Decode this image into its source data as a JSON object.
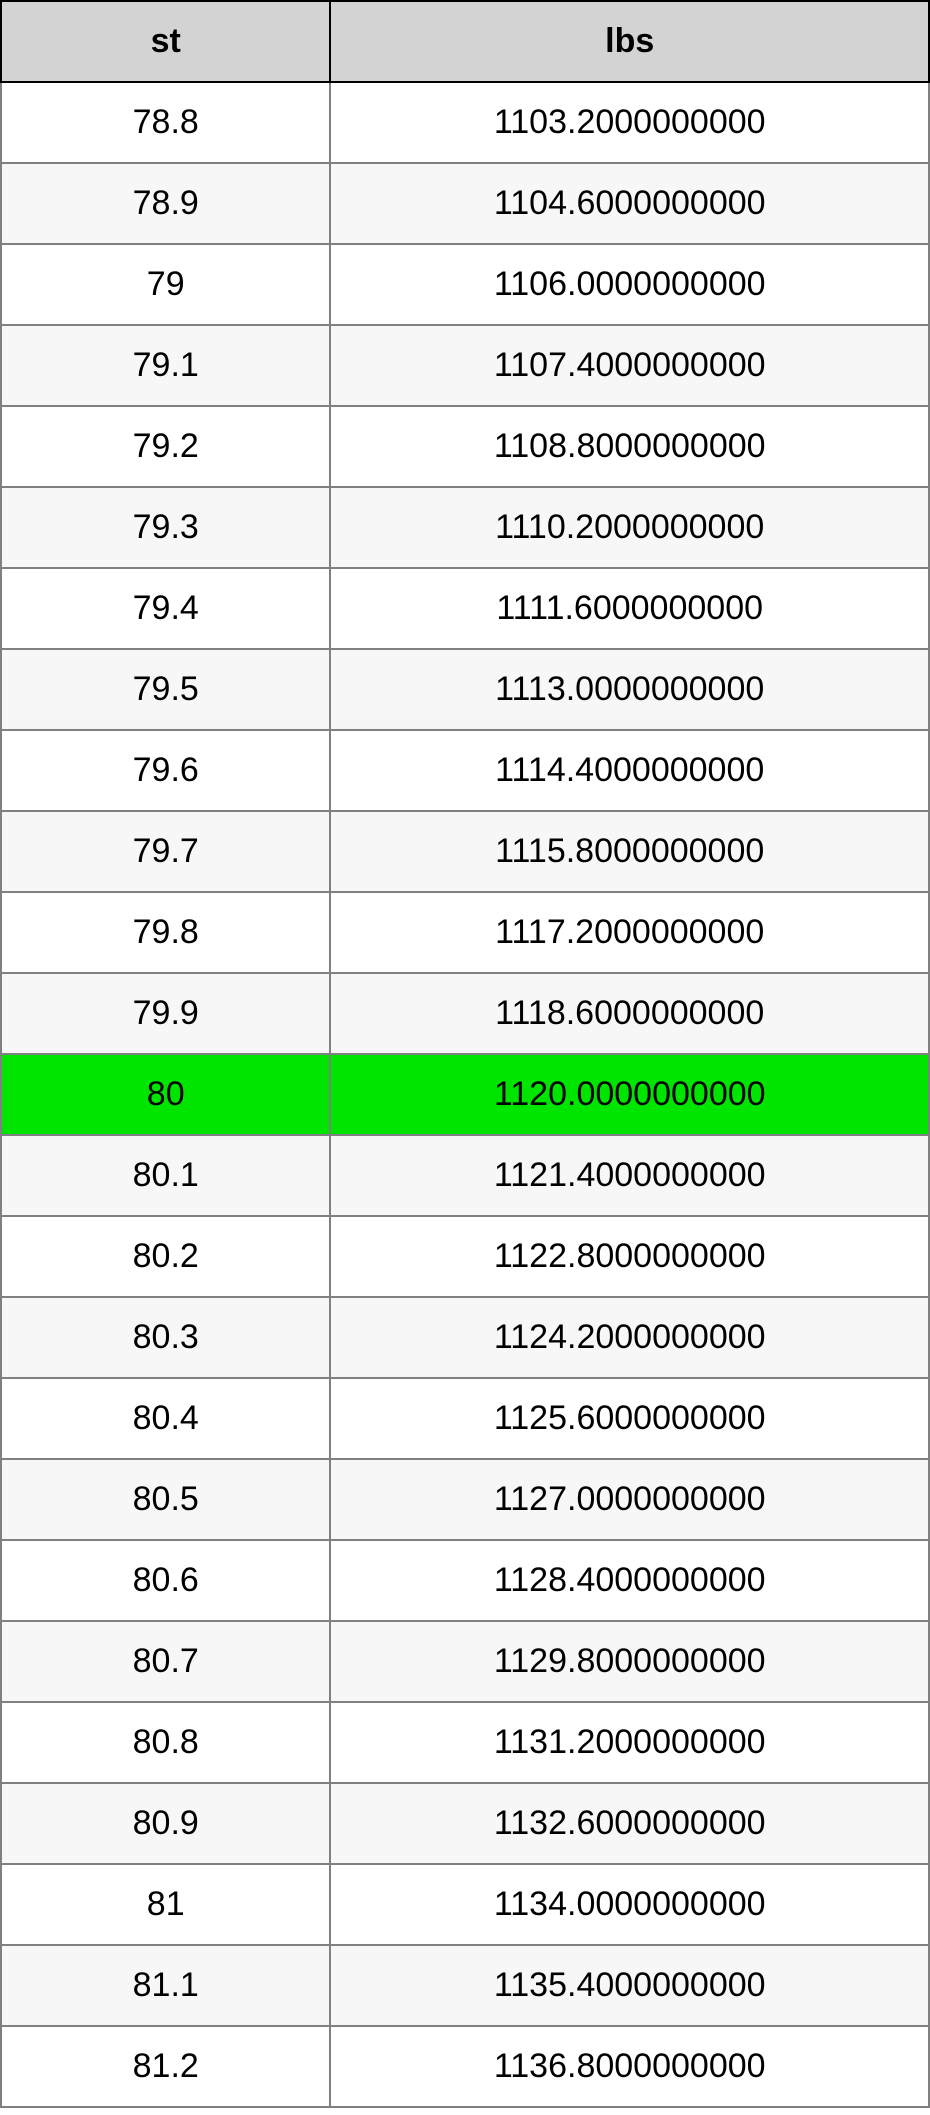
{
  "table": {
    "type": "table",
    "columns": [
      {
        "key": "st",
        "label": "st",
        "width_pct": 35.5
      },
      {
        "key": "lbs",
        "label": "lbs",
        "width_pct": 64.5
      }
    ],
    "header_background": "#d3d3d3",
    "header_fontsize": 34,
    "cell_fontsize": 34,
    "border_color_outer": "#000000",
    "border_color_inner": "#808080",
    "row_colors": {
      "even": "#ffffff",
      "odd": "#f7f7f7",
      "highlight": "#00e500"
    },
    "rows": [
      {
        "st": "78.8",
        "lbs": "1103.2000000000",
        "highlight": false
      },
      {
        "st": "78.9",
        "lbs": "1104.6000000000",
        "highlight": false
      },
      {
        "st": "79",
        "lbs": "1106.0000000000",
        "highlight": false
      },
      {
        "st": "79.1",
        "lbs": "1107.4000000000",
        "highlight": false
      },
      {
        "st": "79.2",
        "lbs": "1108.8000000000",
        "highlight": false
      },
      {
        "st": "79.3",
        "lbs": "1110.2000000000",
        "highlight": false
      },
      {
        "st": "79.4",
        "lbs": "1111.6000000000",
        "highlight": false
      },
      {
        "st": "79.5",
        "lbs": "1113.0000000000",
        "highlight": false
      },
      {
        "st": "79.6",
        "lbs": "1114.4000000000",
        "highlight": false
      },
      {
        "st": "79.7",
        "lbs": "1115.8000000000",
        "highlight": false
      },
      {
        "st": "79.8",
        "lbs": "1117.2000000000",
        "highlight": false
      },
      {
        "st": "79.9",
        "lbs": "1118.6000000000",
        "highlight": false
      },
      {
        "st": "80",
        "lbs": "1120.0000000000",
        "highlight": true
      },
      {
        "st": "80.1",
        "lbs": "1121.4000000000",
        "highlight": false
      },
      {
        "st": "80.2",
        "lbs": "1122.8000000000",
        "highlight": false
      },
      {
        "st": "80.3",
        "lbs": "1124.2000000000",
        "highlight": false
      },
      {
        "st": "80.4",
        "lbs": "1125.6000000000",
        "highlight": false
      },
      {
        "st": "80.5",
        "lbs": "1127.0000000000",
        "highlight": false
      },
      {
        "st": "80.6",
        "lbs": "1128.4000000000",
        "highlight": false
      },
      {
        "st": "80.7",
        "lbs": "1129.8000000000",
        "highlight": false
      },
      {
        "st": "80.8",
        "lbs": "1131.2000000000",
        "highlight": false
      },
      {
        "st": "80.9",
        "lbs": "1132.6000000000",
        "highlight": false
      },
      {
        "st": "81",
        "lbs": "1134.0000000000",
        "highlight": false
      },
      {
        "st": "81.1",
        "lbs": "1135.4000000000",
        "highlight": false
      },
      {
        "st": "81.2",
        "lbs": "1136.8000000000",
        "highlight": false
      }
    ]
  }
}
